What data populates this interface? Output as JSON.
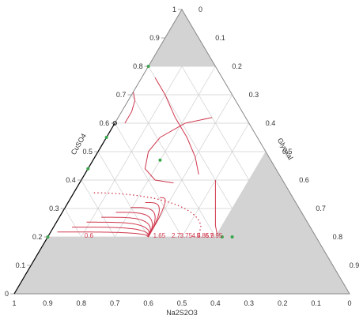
{
  "chart_data": {
    "type": "ternary-contour",
    "axes": {
      "a": {
        "label": "CuSO4",
        "ticks": [
          "0",
          "0.1",
          "0.2",
          "0.3",
          "0.4",
          "0.5",
          "0.6",
          "0.7",
          "0.8",
          "0.9",
          "1"
        ]
      },
      "b": {
        "label": "Glyoxal",
        "ticks": [
          "0",
          "0.1",
          "0.2",
          "0.3",
          "0.4",
          "0.5",
          "0.6",
          "0.7",
          "0.8",
          "0.9",
          "1"
        ]
      },
      "c": {
        "label": "Na2S2O3",
        "ticks": [
          "1",
          "0.9",
          "0.8",
          "0.7",
          "0.6",
          "0.5",
          "0.4",
          "0.3",
          "0.2",
          "0.1",
          "0"
        ]
      }
    },
    "constraints": [
      {
        "component": "CuSO4",
        "min": 0.2,
        "max": 0.8
      },
      {
        "component": "Glyoxal",
        "max": 0.5
      }
    ],
    "contour_labels": [
      "0.6",
      "1.65",
      "2.7",
      "3.75",
      "4.8",
      "5.85",
      "6.9",
      "7.95"
    ],
    "reference_line": {
      "from": {
        "a": 0.6,
        "b": 0.0,
        "c": 0.4
      },
      "to": {
        "a": 0.0,
        "b": 0.0,
        "c": 1.0
      }
    },
    "design_points": [
      {
        "a": 0.8,
        "b": 0.0,
        "c": 0.2
      },
      {
        "a": 0.55,
        "b": 0.0,
        "c": 0.45
      },
      {
        "a": 0.44,
        "b": 0.0,
        "c": 0.56
      },
      {
        "a": 0.2,
        "b": 0.0,
        "c": 0.8
      },
      {
        "a": 0.2,
        "b": 0.55,
        "c": 0.25
      },
      {
        "a": 0.47,
        "b": 0.2,
        "c": 0.33
      },
      {
        "a": 0.2,
        "b": 0.52,
        "c": 0.28
      }
    ],
    "grid": true,
    "colors": {
      "contour": "#d0394e",
      "shade": "#d3d3d3",
      "grid": "#cfcfcf",
      "point": "#37a84a",
      "reference": "#000000",
      "frame": "#888888"
    }
  }
}
